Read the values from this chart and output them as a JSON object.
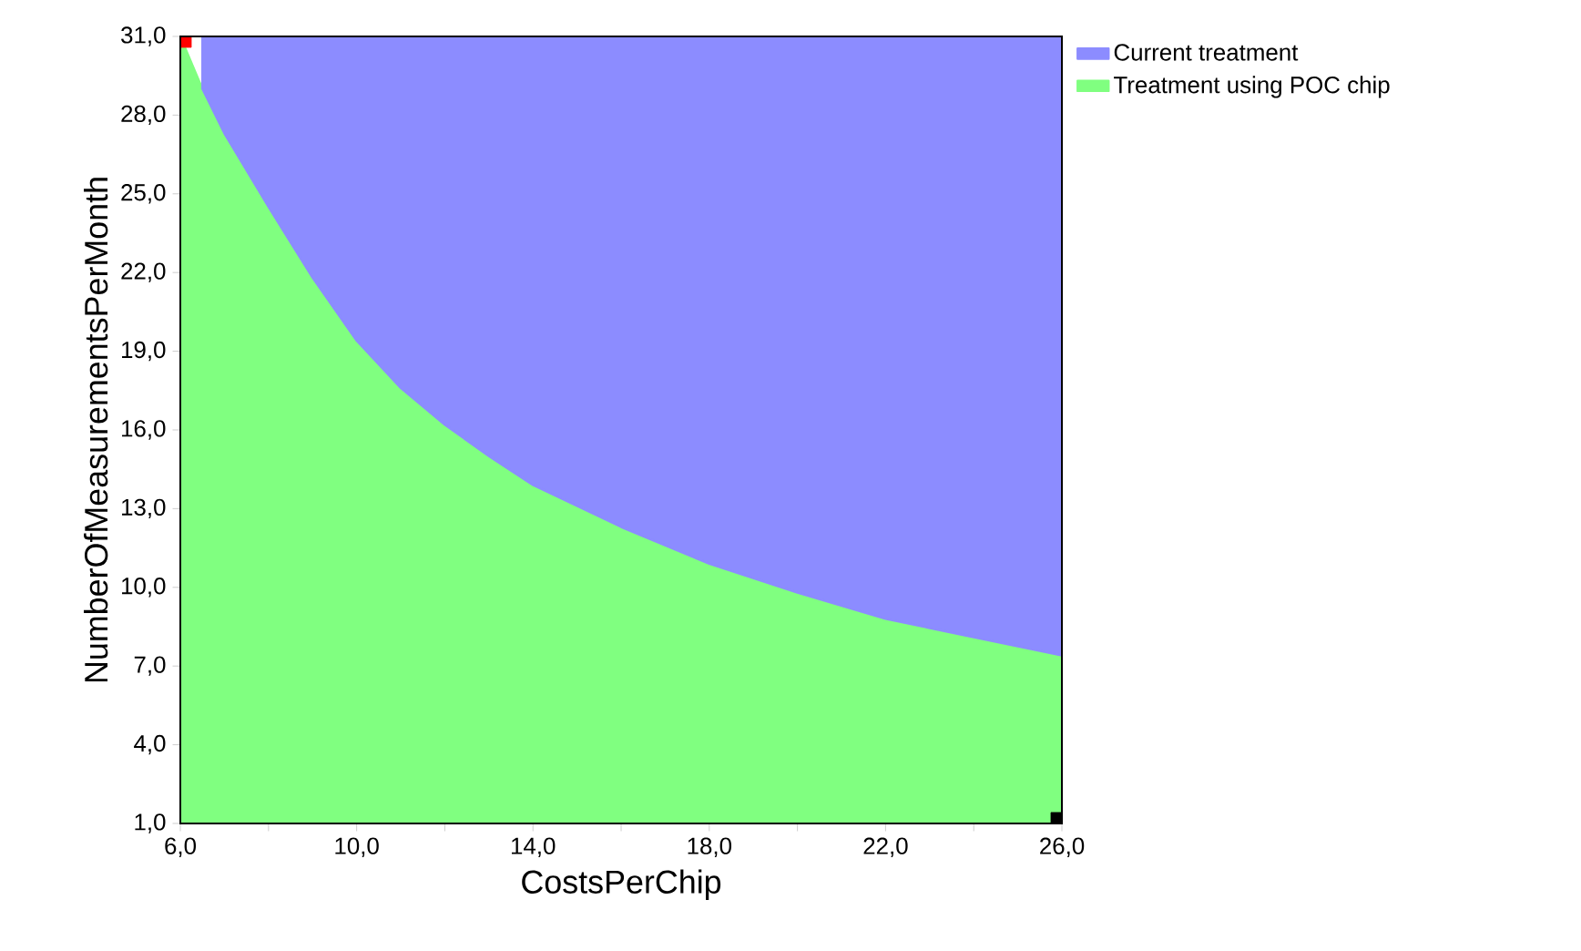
{
  "chart_data": {
    "type": "area",
    "stacked": true,
    "xlabel": "CostsPerChip",
    "ylabel": "NumberOfMeasurementsPerMonth",
    "x": [
      6,
      6.5,
      7,
      8,
      9,
      10,
      11,
      12,
      13,
      14,
      16,
      18,
      20,
      22,
      24,
      26
    ],
    "series": [
      {
        "name": "Treatment using POC chip",
        "color": "#80ff80",
        "values": [
          31,
          29.0,
          27.3,
          24.5,
          21.8,
          19.4,
          17.6,
          16.2,
          15.0,
          13.9,
          12.3,
          10.9,
          9.8,
          8.8,
          8.1,
          7.4
        ]
      },
      {
        "name": "Current treatment",
        "color": "#8c8cff",
        "values": [
          null,
          2.0,
          3.7,
          6.5,
          9.2,
          11.6,
          13.4,
          14.8,
          16.0,
          17.1,
          18.7,
          20.1,
          21.2,
          22.2,
          22.9,
          23.6
        ]
      },
      {
        "type": "scatter",
        "color": "#ff0000",
        "x": [
          6
        ],
        "values": [
          31
        ],
        "marker": "square"
      },
      {
        "type": "scatter",
        "color": "#000000",
        "x": [
          26
        ],
        "values": [
          1
        ],
        "marker": "square"
      }
    ],
    "xlim": [
      6,
      26
    ],
    "ylim": [
      1,
      31
    ],
    "xticks": [
      {
        "value": 6,
        "label": "6,0"
      },
      {
        "value": 8,
        "label": null
      },
      {
        "value": 10,
        "label": "10,0"
      },
      {
        "value": 12,
        "label": null
      },
      {
        "value": 14,
        "label": "14,0"
      },
      {
        "value": 16,
        "label": null
      },
      {
        "value": 18,
        "label": "18,0"
      },
      {
        "value": 20,
        "label": null
      },
      {
        "value": 22,
        "label": "22,0"
      },
      {
        "value": 24,
        "label": null
      },
      {
        "value": 26,
        "label": "26,0"
      }
    ],
    "yticks": [
      {
        "value": 1,
        "label": "1,0"
      },
      {
        "value": 4,
        "label": "4,0"
      },
      {
        "value": 7,
        "label": "7,0"
      },
      {
        "value": 10,
        "label": "10,0"
      },
      {
        "value": 13,
        "label": "13,0"
      },
      {
        "value": 16,
        "label": "16,0"
      },
      {
        "value": 19,
        "label": "19,0"
      },
      {
        "value": 22,
        "label": "22,0"
      },
      {
        "value": 25,
        "label": "25,0"
      },
      {
        "value": 28,
        "label": "28,0"
      },
      {
        "value": 31,
        "label": "31,0"
      }
    ],
    "legend": "right",
    "grid": false
  }
}
